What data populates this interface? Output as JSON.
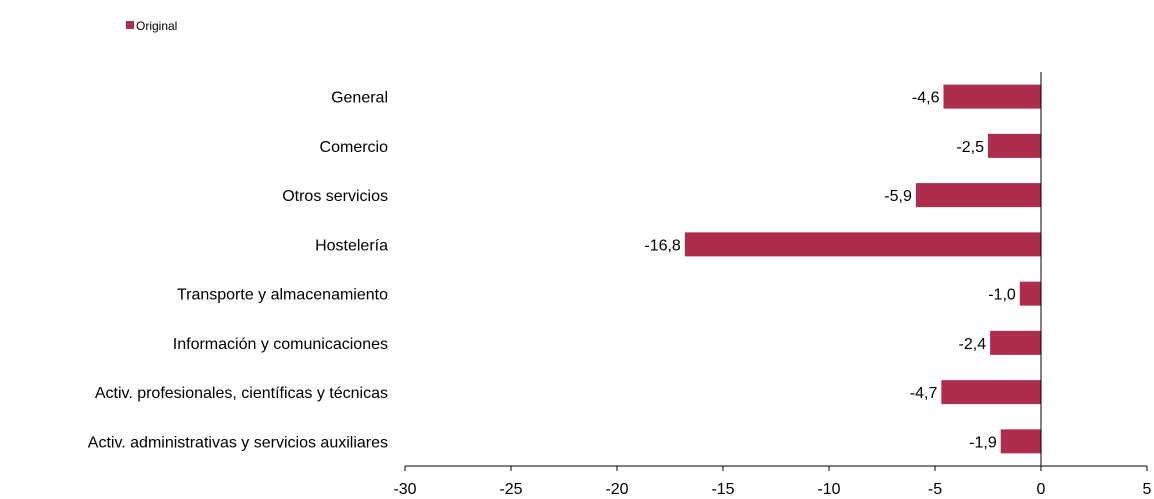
{
  "chart_data": {
    "type": "bar",
    "orientation": "horizontal",
    "categories": [
      "General",
      "Comercio",
      "Otros servicios",
      "Hostelería",
      "Transporte y almacenamiento",
      "Información y comunicaciones",
      "Activ. profesionales, científicas y técnicas",
      "Activ. administrativas y servicios auxiliares"
    ],
    "series": [
      {
        "name": "Original",
        "color": "#ae2d4c",
        "values": [
          -4.6,
          -2.5,
          -5.9,
          -16.8,
          -1.0,
          -2.4,
          -4.7,
          -1.9
        ],
        "labels": [
          "-4,6",
          "-2,5",
          "-5,9",
          "-16,8",
          "-1,0",
          "-2,4",
          "-4,7",
          "-1,9"
        ]
      }
    ],
    "xlim": [
      -30,
      5
    ],
    "xticks": [
      -30,
      -25,
      -20,
      -15,
      -10,
      -5,
      0,
      5
    ],
    "xtick_labels": [
      "-30",
      "-25",
      "-20",
      "-15",
      "-10",
      "-5",
      "0",
      "5"
    ],
    "grid": false,
    "legend_position": "top-left"
  }
}
